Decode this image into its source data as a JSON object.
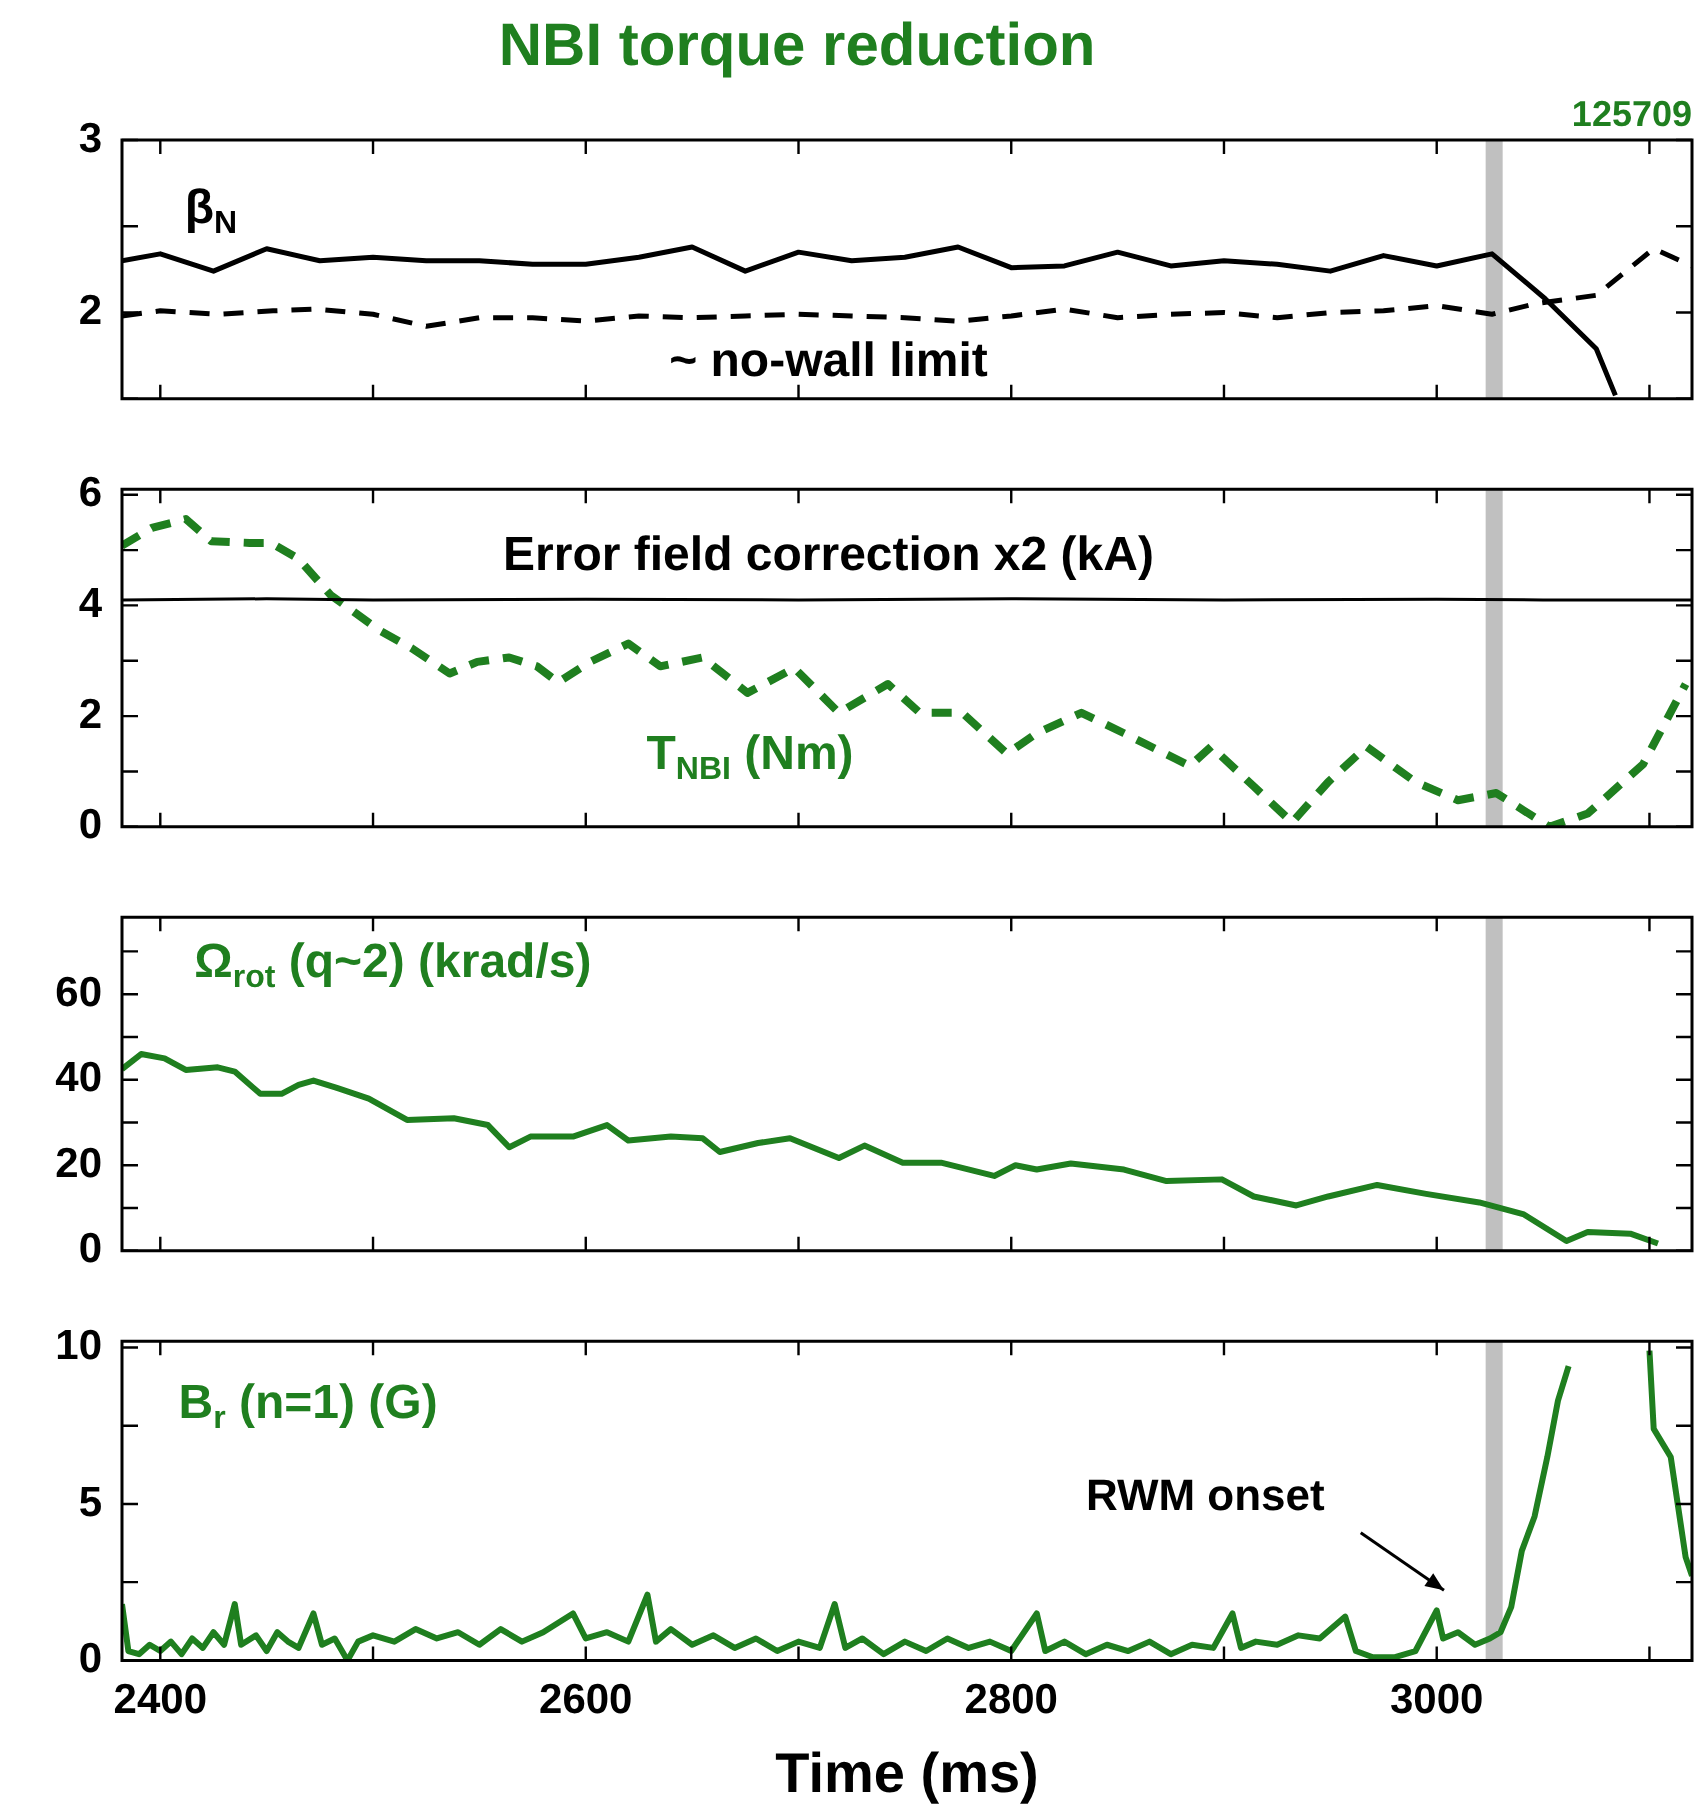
{
  "chart_data": [
    {
      "type": "line",
      "title": "NBI torque reduction",
      "annotations": [
        "125709"
      ],
      "marker": "none",
      "tick_labels": "y",
      "xlim": [
        2382,
        3120
      ],
      "xticks": [
        2400,
        {
          "value": 2500,
          "label": null
        },
        2600,
        {
          "value": 2700,
          "label": null
        },
        2800,
        {
          "value": 2900,
          "label": null
        },
        3000,
        {
          "value": 3100,
          "label": null
        }
      ],
      "ylim": [
        1.5,
        3
      ],
      "yticks": [
        {
          "value": 1.5,
          "label": null
        },
        2,
        {
          "value": 2.5,
          "label": null
        },
        3
      ],
      "bands": [
        {
          "axis": "x",
          "from": 3023,
          "to": 3031,
          "color": "#c0c0c0"
        }
      ],
      "series": [
        {
          "name": "β$_{N}$",
          "color": "#000000",
          "line_style": "solid",
          "x": [
            2382,
            2400,
            2425,
            2450,
            2475,
            2500,
            2525,
            2550,
            2575,
            2600,
            2625,
            2650,
            2675,
            2700,
            2725,
            2750,
            2775,
            2800,
            2825,
            2850,
            2875,
            2900,
            2925,
            2950,
            2975,
            3000,
            3026,
            3051,
            3075,
            3084
          ],
          "values": [
            2.3,
            2.34,
            2.24,
            2.37,
            2.3,
            2.32,
            2.3,
            2.3,
            2.28,
            2.28,
            2.32,
            2.38,
            2.24,
            2.35,
            2.3,
            2.32,
            2.38,
            2.26,
            2.27,
            2.35,
            2.27,
            2.3,
            2.28,
            2.24,
            2.33,
            2.27,
            2.34,
            2.08,
            1.79,
            1.52
          ]
        },
        {
          "name": "~ no-wall limit",
          "color": "#000000",
          "line_style": "dashed",
          "x": [
            2382,
            2400,
            2427,
            2453,
            2473,
            2500,
            2525,
            2550,
            2575,
            2600,
            2625,
            2650,
            2675,
            2700,
            2725,
            2750,
            2775,
            2800,
            2825,
            2850,
            2875,
            2900,
            2925,
            2950,
            2975,
            3000,
            3026,
            3046,
            3075,
            3102,
            3120
          ],
          "values": [
            1.98,
            2.01,
            1.99,
            2.01,
            2.02,
            1.99,
            1.92,
            1.97,
            1.97,
            1.95,
            1.98,
            1.97,
            1.98,
            1.99,
            1.98,
            1.97,
            1.95,
            1.98,
            2.02,
            1.97,
            1.99,
            2.0,
            1.97,
            2.0,
            2.01,
            2.04,
            1.99,
            2.05,
            2.1,
            2.37,
            2.27
          ]
        }
      ]
    },
    {
      "type": "line",
      "marker": "none",
      "tick_labels": "y",
      "xlim": [
        2382,
        3120
      ],
      "xticks": [
        2400,
        {
          "value": 2500,
          "label": null
        },
        2600,
        {
          "value": 2700,
          "label": null
        },
        2800,
        {
          "value": 2900,
          "label": null
        },
        3000,
        {
          "value": 3100,
          "label": null
        }
      ],
      "ylim": [
        0,
        6.1
      ],
      "yticks": [
        0,
        {
          "value": 1,
          "label": null
        },
        2,
        {
          "value": 3,
          "label": null
        },
        4,
        {
          "value": 5,
          "label": null
        },
        6
      ],
      "bands": [
        {
          "axis": "x",
          "from": 3023,
          "to": 3031,
          "color": "#c0c0c0"
        }
      ],
      "series": [
        {
          "name": "Error field correction x2 (kA)",
          "color": "#000000",
          "line_style": "solid",
          "x": [
            2382,
            2450,
            2500,
            2600,
            2700,
            2800,
            2900,
            3000,
            3050,
            3120
          ],
          "values": [
            4.1,
            4.12,
            4.1,
            4.11,
            4.1,
            4.12,
            4.1,
            4.11,
            4.1,
            4.1
          ]
        },
        {
          "name": "T$_{NBI}$ (Nm)",
          "color": "#1f7f1f",
          "line_style": "dashed",
          "x": [
            2382,
            2396,
            2412,
            2424,
            2442,
            2452,
            2465,
            2480,
            2503,
            2518,
            2536,
            2549,
            2564,
            2577,
            2587,
            2602,
            2620,
            2635,
            2655,
            2676,
            2698,
            2719,
            2742,
            2757,
            2777,
            2798,
            2812,
            2833,
            2853,
            2884,
            2894,
            2914,
            2932,
            2949,
            2967,
            2990,
            3010,
            3028,
            3053,
            3071,
            3097,
            3117
          ],
          "values": [
            5.08,
            5.4,
            5.56,
            5.16,
            5.13,
            5.13,
            4.84,
            4.19,
            3.55,
            3.23,
            2.77,
            2.98,
            3.06,
            2.9,
            2.61,
            2.98,
            3.31,
            2.9,
            3.06,
            2.42,
            2.87,
            2.06,
            2.58,
            2.06,
            2.06,
            1.32,
            1.69,
            2.06,
            1.69,
            1.1,
            1.45,
            0.73,
            0.08,
            0.81,
            1.45,
            0.81,
            0.48,
            0.61,
            0,
            0.24,
            1.13,
            2.58
          ]
        }
      ]
    },
    {
      "type": "line",
      "marker": "none",
      "tick_labels": "y",
      "xlim": [
        2382,
        3120
      ],
      "xticks": [
        2400,
        {
          "value": 2500,
          "label": null
        },
        2600,
        {
          "value": 2700,
          "label": null
        },
        2800,
        {
          "value": 2900,
          "label": null
        },
        3000,
        {
          "value": 3100,
          "label": null
        }
      ],
      "ylim": [
        0,
        78
      ],
      "yticks": [
        0,
        {
          "value": 10,
          "label": null
        },
        20,
        {
          "value": 30,
          "label": null
        },
        40,
        {
          "value": 50,
          "label": null
        },
        60,
        {
          "value": 70,
          "label": null
        }
      ],
      "bands": [
        {
          "axis": "x",
          "from": 3023,
          "to": 3031,
          "color": "#c0c0c0"
        }
      ],
      "series": [
        {
          "name": "Ω$_{rot}$ (q~2) (krad/s)",
          "color": "#1f7f1f",
          "line_style": "solid",
          "x": [
            2382,
            2391,
            2402,
            2412,
            2427,
            2435,
            2447,
            2457,
            2465,
            2472,
            2483,
            2498,
            2516,
            2538,
            2554,
            2564,
            2574,
            2594,
            2610,
            2620,
            2640,
            2655,
            2663,
            2681,
            2696,
            2719,
            2731,
            2749,
            2767,
            2792,
            2802,
            2812,
            2828,
            2853,
            2873,
            2899,
            2914,
            2934,
            2949,
            2972,
            2995,
            3020,
            3041,
            3061,
            3071,
            3091,
            3104
          ],
          "values": [
            42.5,
            46.0,
            45.0,
            42.3,
            42.9,
            41.9,
            36.7,
            36.7,
            38.8,
            39.8,
            38.1,
            35.6,
            30.6,
            31.0,
            29.4,
            24.2,
            26.7,
            26.7,
            29.4,
            25.8,
            26.7,
            26.3,
            23.1,
            25.2,
            26.3,
            21.7,
            24.6,
            20.6,
            20.6,
            17.5,
            20.0,
            19.0,
            20.4,
            19.0,
            16.3,
            16.7,
            12.7,
            10.6,
            12.7,
            15.4,
            13.3,
            11.3,
            8.5,
            2.3,
            4.4,
            4.0,
            1.7
          ]
        }
      ]
    },
    {
      "type": "line",
      "marker": "none",
      "xlabel": "Time (ms)",
      "annotations": [
        "RWM onset"
      ],
      "xlim": [
        2382,
        3120
      ],
      "xticks": [
        2400,
        {
          "value": 2500,
          "label": null
        },
        2600,
        {
          "value": 2700,
          "label": null
        },
        2800,
        {
          "value": 2900,
          "label": null
        },
        3000,
        {
          "value": 3100,
          "label": null
        }
      ],
      "ylim": [
        0,
        10.2
      ],
      "yticks": [
        0,
        {
          "value": 2.5,
          "label": null
        },
        5,
        {
          "value": 7.5,
          "label": null
        },
        10
      ],
      "bands": [
        {
          "axis": "x",
          "from": 3023,
          "to": 3031,
          "color": "#c0c0c0"
        }
      ],
      "series": [
        {
          "name": "B$_{r}$ (n=1) (G)",
          "color": "#1f7f1f",
          "line_style": "solid",
          "x": [
            2382,
            2385,
            2390,
            2395,
            2400,
            2405,
            2410,
            2415,
            2420,
            2425,
            2430,
            2435,
            2438,
            2445,
            2450,
            2455,
            2460,
            2465,
            2472,
            2476,
            2482,
            2488,
            2493,
            2500,
            2510,
            2520,
            2530,
            2540,
            2550,
            2560,
            2570,
            2580,
            2594,
            2600,
            2610,
            2620,
            2629,
            2633,
            2640,
            2650,
            2660,
            2670,
            2680,
            2690,
            2700,
            2710,
            2717,
            2722,
            2730,
            2740,
            2750,
            2760,
            2770,
            2780,
            2790,
            2800,
            2812,
            2816,
            2825,
            2835,
            2845,
            2855,
            2865,
            2875,
            2885,
            2895,
            2904,
            2908,
            2915,
            2925,
            2935,
            2945,
            2957,
            2962,
            2970,
            2980,
            2990,
            3000,
            3003,
            3010,
            3018,
            3025,
            3030,
            3035,
            3040,
            3046,
            3052,
            3057,
            3062,
            3066,
            3080,
            3094,
            3100,
            3102,
            3110,
            3117,
            3120
          ],
          "values": [
            1.8,
            0.3,
            0.2,
            0.5,
            0.3,
            0.6,
            0.2,
            0.7,
            0.4,
            0.9,
            0.5,
            1.8,
            0.5,
            0.8,
            0.3,
            0.9,
            0.6,
            0.4,
            1.5,
            0.5,
            0.7,
            0.0,
            0.6,
            0.8,
            0.6,
            1.0,
            0.7,
            0.9,
            0.5,
            1.0,
            0.6,
            0.9,
            1.5,
            0.7,
            0.9,
            0.6,
            2.1,
            0.6,
            1.0,
            0.5,
            0.8,
            0.4,
            0.7,
            0.3,
            0.6,
            0.4,
            1.8,
            0.4,
            0.7,
            0.2,
            0.6,
            0.3,
            0.7,
            0.4,
            0.6,
            0.3,
            1.5,
            0.3,
            0.6,
            0.2,
            0.5,
            0.3,
            0.6,
            0.2,
            0.5,
            0.4,
            1.5,
            0.4,
            0.6,
            0.5,
            0.8,
            0.7,
            1.4,
            0.3,
            0.1,
            0.1,
            0.3,
            1.6,
            0.7,
            0.9,
            0.5,
            0.7,
            0.9,
            1.7,
            3.5,
            4.6,
            6.5,
            8.3,
            9.4,
            null,
            null,
            null,
            9.9,
            7.4,
            6.5,
            3.3,
            2.7
          ]
        }
      ]
    }
  ]
}
